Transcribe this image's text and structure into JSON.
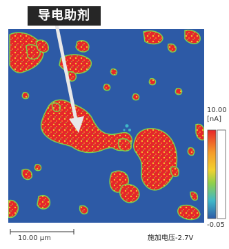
{
  "annotation": {
    "label": "导电助剂"
  },
  "colorbar": {
    "max_label": "10.00",
    "unit_label": "[nA]",
    "min_label": "-0.05",
    "colors": {
      "high": "#e8262a",
      "mid_high": "#f2c12e",
      "mid": "#7fd04a",
      "low": "#3fb7c8",
      "base": "#2d5aa6"
    }
  },
  "scale_bar": {
    "label": "10.00 µm"
  },
  "voltage": {
    "label": "施加电压-2.7V"
  }
}
